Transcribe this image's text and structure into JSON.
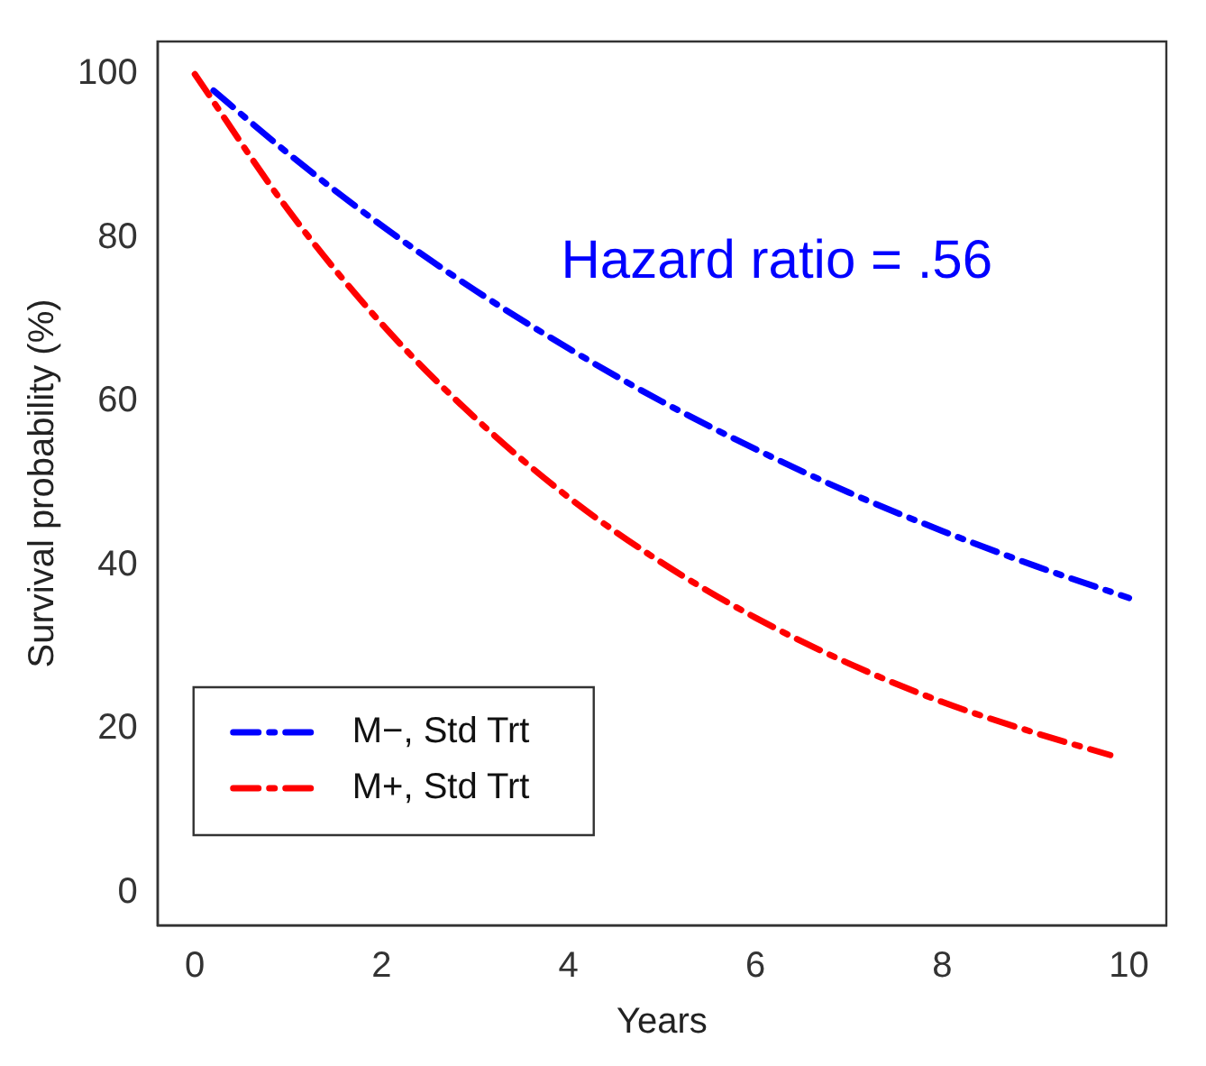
{
  "chart_data": {
    "type": "line",
    "xlabel": "Years",
    "ylabel": "Survival probability (%)",
    "annotations": [
      "Hazard ratio = .56"
    ],
    "xlim": [
      -0.4,
      10.4
    ],
    "xticks": [
      0,
      2,
      4,
      6,
      8,
      10
    ],
    "ylim": [
      -4,
      104
    ],
    "yticks": [
      0,
      20,
      40,
      60,
      80,
      100
    ],
    "grid": false,
    "legend": "bottom left",
    "marker": "none",
    "line_style": "dashed",
    "series": [
      {
        "name": "M−, Std Trt",
        "color": "#0000ff",
        "x": [
          0.2,
          1,
          2,
          3,
          4,
          5,
          6,
          7,
          8,
          9,
          10
        ],
        "values": [
          98,
          90.3,
          81.5,
          73.6,
          66.5,
          60,
          54.2,
          48.9,
          44.2,
          39.9,
          36
        ]
      },
      {
        "name": "M+, Std Trt",
        "color": "#ff0000",
        "x": [
          0,
          1,
          2,
          3,
          4,
          5,
          6,
          7,
          8,
          9,
          9.8
        ],
        "values": [
          100,
          83.4,
          69.5,
          58,
          48.3,
          40.3,
          33.6,
          28,
          23.3,
          19.5,
          16.8
        ]
      }
    ]
  }
}
